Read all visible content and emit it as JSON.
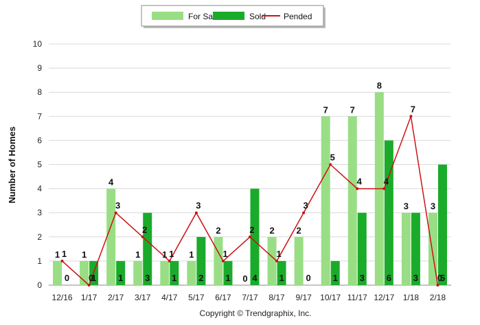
{
  "chart_data": {
    "type": "bar",
    "title": "",
    "xlabel": "",
    "ylabel": "Number of Homes",
    "ylim": [
      0,
      10
    ],
    "yticks": [
      "0",
      "1",
      "2",
      "3",
      "4",
      "5",
      "6",
      "7",
      "8",
      "9",
      "10"
    ],
    "grid": true,
    "legend_position": "top-center",
    "categories": [
      "12/16",
      "1/17",
      "2/17",
      "3/17",
      "4/17",
      "5/17",
      "6/17",
      "7/17",
      "8/17",
      "9/17",
      "10/17",
      "11/17",
      "12/17",
      "1/18",
      "2/18"
    ],
    "series": [
      {
        "name": "For Sale",
        "type": "bar",
        "color": "#99de85",
        "values": [
          1,
          1,
          4,
          1,
          1,
          1,
          2,
          0,
          2,
          2,
          7,
          7,
          8,
          3,
          3
        ]
      },
      {
        "name": "Sold",
        "type": "bar",
        "color": "#1aab2a",
        "values": [
          0,
          1,
          1,
          3,
          1,
          2,
          1,
          4,
          1,
          0,
          1,
          3,
          6,
          3,
          5
        ]
      },
      {
        "name": "Pended",
        "type": "line",
        "color": "#cc1111",
        "values": [
          1,
          0,
          3,
          2,
          1,
          3,
          1,
          2,
          1,
          3,
          5,
          4,
          4,
          7,
          0
        ]
      }
    ]
  },
  "footer": {
    "copyright": "Copyright © Trendgraphix, Inc."
  }
}
